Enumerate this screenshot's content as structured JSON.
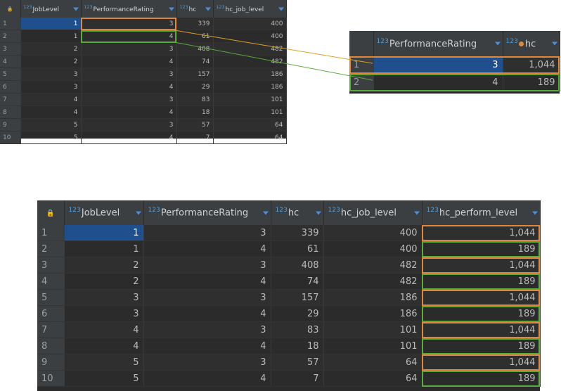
{
  "grid_top_left": {
    "columns": [
      "JobLevel",
      "PerformanceRating",
      "hc",
      "hc_job_level"
    ],
    "rows": [
      {
        "rn": "1",
        "JobLevel": "1",
        "PerformanceRating": "3",
        "hc": "339",
        "hc_job_level": "400"
      },
      {
        "rn": "2",
        "JobLevel": "1",
        "PerformanceRating": "4",
        "hc": "61",
        "hc_job_level": "400"
      },
      {
        "rn": "3",
        "JobLevel": "2",
        "PerformanceRating": "3",
        "hc": "408",
        "hc_job_level": "482"
      },
      {
        "rn": "4",
        "JobLevel": "2",
        "PerformanceRating": "4",
        "hc": "74",
        "hc_job_level": "482"
      },
      {
        "rn": "5",
        "JobLevel": "3",
        "PerformanceRating": "3",
        "hc": "157",
        "hc_job_level": "186"
      },
      {
        "rn": "6",
        "JobLevel": "3",
        "PerformanceRating": "4",
        "hc": "29",
        "hc_job_level": "186"
      },
      {
        "rn": "7",
        "JobLevel": "4",
        "PerformanceRating": "3",
        "hc": "83",
        "hc_job_level": "101"
      },
      {
        "rn": "8",
        "JobLevel": "4",
        "PerformanceRating": "4",
        "hc": "18",
        "hc_job_level": "101"
      },
      {
        "rn": "9",
        "JobLevel": "5",
        "PerformanceRating": "3",
        "hc": "57",
        "hc_job_level": "64"
      },
      {
        "rn": "10",
        "JobLevel": "5",
        "PerformanceRating": "4",
        "hc": "7",
        "hc_job_level": "64"
      }
    ]
  },
  "grid_top_right": {
    "columns": [
      "PerformanceRating",
      "hc"
    ],
    "rows": [
      {
        "rn": "1",
        "PerformanceRating": "3",
        "hc": "1,044"
      },
      {
        "rn": "2",
        "PerformanceRating": "4",
        "hc": "189"
      }
    ]
  },
  "grid_bottom": {
    "columns": [
      "JobLevel",
      "PerformanceRating",
      "hc",
      "hc_job_level",
      "hc_perform_level"
    ],
    "rows": [
      {
        "rn": "1",
        "JobLevel": "1",
        "PerformanceRating": "3",
        "hc": "339",
        "hc_job_level": "400",
        "hc_perform_level": "1,044"
      },
      {
        "rn": "2",
        "JobLevel": "1",
        "PerformanceRating": "4",
        "hc": "61",
        "hc_job_level": "400",
        "hc_perform_level": "189"
      },
      {
        "rn": "3",
        "JobLevel": "2",
        "PerformanceRating": "3",
        "hc": "408",
        "hc_job_level": "482",
        "hc_perform_level": "1,044"
      },
      {
        "rn": "4",
        "JobLevel": "2",
        "PerformanceRating": "4",
        "hc": "74",
        "hc_job_level": "482",
        "hc_perform_level": "189"
      },
      {
        "rn": "5",
        "JobLevel": "3",
        "PerformanceRating": "3",
        "hc": "157",
        "hc_job_level": "186",
        "hc_perform_level": "1,044"
      },
      {
        "rn": "6",
        "JobLevel": "3",
        "PerformanceRating": "4",
        "hc": "29",
        "hc_job_level": "186",
        "hc_perform_level": "189"
      },
      {
        "rn": "7",
        "JobLevel": "4",
        "PerformanceRating": "3",
        "hc": "83",
        "hc_job_level": "101",
        "hc_perform_level": "1,044"
      },
      {
        "rn": "8",
        "JobLevel": "4",
        "PerformanceRating": "4",
        "hc": "18",
        "hc_job_level": "101",
        "hc_perform_level": "189"
      },
      {
        "rn": "9",
        "JobLevel": "5",
        "PerformanceRating": "3",
        "hc": "57",
        "hc_job_level": "64",
        "hc_perform_level": "1,044"
      },
      {
        "rn": "10",
        "JobLevel": "5",
        "PerformanceRating": "4",
        "hc": "7",
        "hc_job_level": "64",
        "hc_perform_level": "189"
      }
    ]
  },
  "type_badge": "123",
  "colors": {
    "orange": "#e0873a",
    "green": "#5aab3e",
    "selected": "#1f4f8c",
    "header": "#3c3f41",
    "grid": "#2b2b2b"
  }
}
